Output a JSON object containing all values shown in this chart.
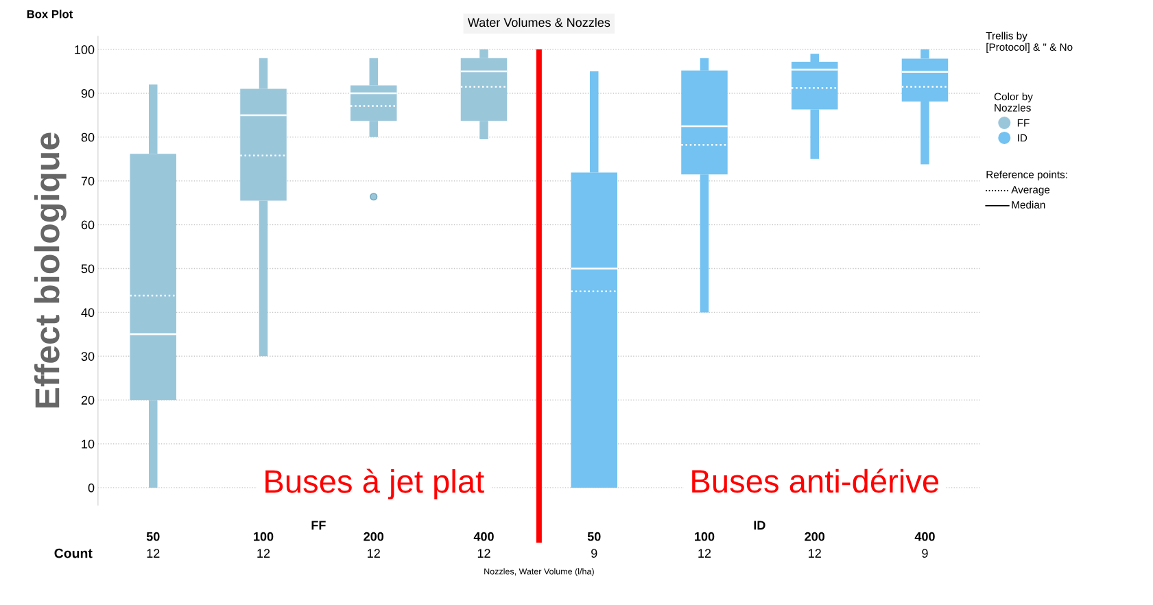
{
  "chart_data": {
    "type": "box",
    "title": "Box Plot",
    "subtitle": "Water Volumes & Nozzles",
    "xlabel": "Nozzles, Water Volume (l/ha)",
    "ylabel": "Effect biologique",
    "legend_title": "Color by\nNozzles",
    "categories": [
      "50",
      "100",
      "200",
      "400",
      "50",
      "100",
      "200",
      "400"
    ],
    "series": [
      {
        "name": "FF",
        "color": "#9ac6da",
        "boxes": [
          {
            "low": 0,
            "q1": 20,
            "median": 35,
            "q3": 76.2,
            "high": 92,
            "mean": 43.8
          },
          {
            "low": 30,
            "q1": 65.5,
            "median": 85,
            "q3": 91,
            "high": 98,
            "mean": 75.8
          },
          {
            "low": 80,
            "q1": 83.7,
            "median": 90,
            "q3": 91.8,
            "high": 98,
            "mean": 87.1,
            "outliers": [
              66.4
            ]
          },
          {
            "low": 79.5,
            "q1": 83.7,
            "median": 95,
            "q3": 98,
            "high": 100,
            "mean": 91.5
          },
          null,
          null,
          null,
          null
        ]
      },
      {
        "name": "ID",
        "color": "#73c2f1",
        "boxes": [
          null,
          null,
          null,
          null,
          {
            "low": 0,
            "q1": 0,
            "median": 50,
            "q3": 71.9,
            "high": 95,
            "mean": 44.8
          },
          {
            "low": 40,
            "q1": 71.5,
            "median": 82.5,
            "q3": 95.2,
            "high": 98,
            "mean": 78.2
          },
          {
            "low": 75,
            "q1": 86.3,
            "median": 95.4,
            "q3": 97.2,
            "high": 99,
            "mean": 91.2
          },
          {
            "low": 73.8,
            "q1": 88.1,
            "median": 94.9,
            "q3": 97.9,
            "high": 100,
            "mean": 91.5
          }
        ]
      }
    ],
    "ylim": [
      -4,
      103
    ],
    "yticks": [
      0,
      10,
      20,
      30,
      40,
      50,
      60,
      70,
      80,
      90,
      100
    ],
    "grid": "y",
    "legend": "right",
    "annotations": [
      "Buses à jet plat",
      "Buses anti-dérive",
      "FF",
      "ID",
      "Count",
      "12",
      "12",
      "12",
      "12",
      "9",
      "12",
      "12",
      "9",
      "Trellis by\n[Protocol] & \" & No",
      "Reference points:",
      "Average",
      "Median"
    ]
  }
}
